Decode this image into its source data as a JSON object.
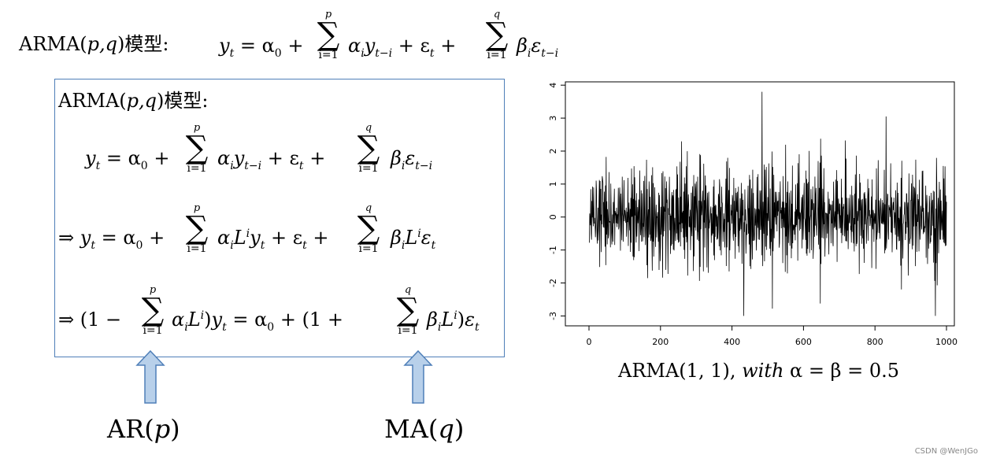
{
  "top_heading": {
    "prefix": "ARMA(",
    "args": "p,q",
    "suffix": ")模型:",
    "equation_lhs": "y",
    "t": "t",
    "eq": " = α",
    "zero": "0",
    "plus": " + ",
    "sum1_top": "p",
    "sum1_bottom": "i=1",
    "sum1_term": "α",
    "i": "i",
    "y_term": "y",
    "lag_sub": "t−i",
    "eps_part": " + ε",
    "plus2": " + ",
    "sum2_top": "q",
    "sum2_bottom": "i=1",
    "beta_term": "β",
    "eps2": "ε",
    "eps2_sub": "t−i"
  },
  "box": {
    "title_prefix": "ARMA(",
    "title_args": "p,q",
    "title_suffix": ")模型:",
    "line1": {
      "lhs": "y",
      "sub_t": "t",
      "rhs_start": " = α",
      "zero": "0",
      "plus": " + ",
      "sum_top": "p",
      "sum_bottom": "i=1",
      "alpha": "α",
      "i": "i",
      "y": "y",
      "lag": "t−i",
      "eps": " + ε",
      "t": "t",
      "plus2": " + ",
      "sum2_top": "q",
      "sum2_bottom": "i=1",
      "beta": "β",
      "eps2": "ε",
      "lag2": "t−i"
    },
    "line2": {
      "implies": "⇒ ",
      "lhs": "y",
      "t": "t",
      "rhs_start": " = α",
      "zero": "0",
      "plus": " + ",
      "sum_top": "p",
      "sum_bottom": "i=1",
      "alpha": "α",
      "i": "i",
      "L": "L",
      "sup_i": "i",
      "y": "y",
      "eps": " + ε",
      "plus2": " + ",
      "sum2_top": "q",
      "sum2_bottom": "i=1",
      "beta": "β",
      "L2": "L",
      "eps2": "ε"
    },
    "line3": {
      "implies": "⇒ ",
      "open": "(1 − ",
      "sum_top": "p",
      "sum_bottom": "i=1",
      "alpha": "α",
      "i": "i",
      "L": "L",
      "sup_i": "i",
      "close": ")",
      "y": "y",
      "t": "t",
      "eq": "  =  α",
      "zero": "0",
      "open2": " + (1 + ",
      "sum2_top": "q",
      "sum2_bottom": "i=1",
      "beta": "β",
      "L2": "L",
      "close2": ")",
      "eps": "ε"
    }
  },
  "labels": {
    "ar": "AR(",
    "ar_arg": "p",
    "ar_close": ")",
    "ma": "MA(",
    "ma_arg": "q",
    "ma_close": ")"
  },
  "arrow_color": "#b8d0ea",
  "arrow_stroke": "#4f7fb8",
  "box_color": "#4f7fb8",
  "chart_data": {
    "type": "line",
    "title": "",
    "xlabel": "",
    "ylabel": "",
    "xlim": [
      0,
      1000
    ],
    "ylim": [
      -3,
      4
    ],
    "xticks": [
      0,
      200,
      400,
      600,
      800,
      1000
    ],
    "yticks": [
      -3,
      -2,
      -1,
      0,
      1,
      2,
      3,
      4
    ],
    "series": [
      {
        "n": 1000,
        "description_values": "simulated ARMA(1,1) series, approx range -3.0 to 3.8, notable peaks ≈3.8 near x=483, ≈3.0 near x=830, lows ≈-3.0 near x=432 and x=968",
        "values": []
      }
    ],
    "grid": false
  },
  "caption": {
    "text": "ARMA(1, 1), ",
    "with": "with",
    "rest": " α = β = 0.5"
  },
  "watermark": "CSDN @WenJGo"
}
